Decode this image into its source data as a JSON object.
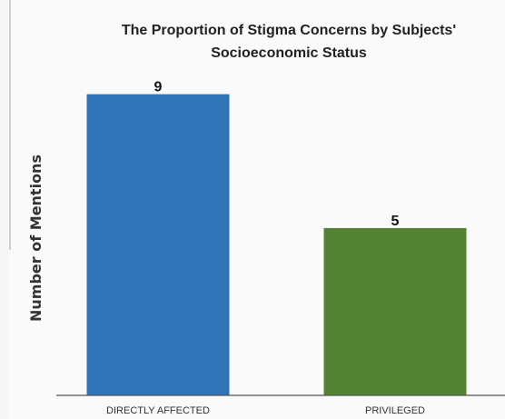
{
  "chart_data": {
    "type": "bar",
    "title_lines": [
      "The Proportion of Stigma Concerns by Subjects'",
      "Socioeconomic Status"
    ],
    "xlabel": "",
    "ylabel": "Number of Mentions",
    "categories": [
      "DIRECTLY AFFECTED",
      "PRIVILEGED"
    ],
    "values": [
      9,
      5
    ],
    "colors": [
      "#2e74b6",
      "#548235"
    ],
    "ylim": [
      0,
      11
    ],
    "grid": false,
    "legend": "none"
  }
}
